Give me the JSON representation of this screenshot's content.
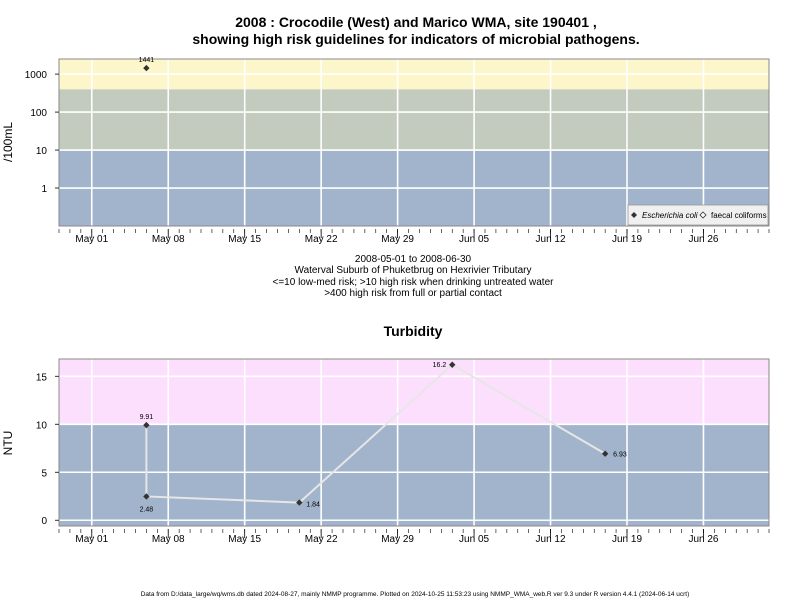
{
  "titles": {
    "main_line1": "2008 : Crocodile (West) and Marico WMA, site 190401 ,",
    "main_line2": "showing high risk guidelines for indicators of microbial pathogens.",
    "info_lines": [
      "2008-05-01 to 2008-06-30",
      "Waterval Suburb of Phuketbrug on Hexrivier Tributary",
      "<=10 low-med risk; >10 high risk when drinking untreated water",
      ">400 high risk from full or partial contact"
    ],
    "footer": "Data from D:/data_large/wq/wms.db dated 2024-08-27, mainly NMMP programme. Plotted on 2024-10-25 11:53:23 using NMMP_WMA_web.R ver 9.3 under R version 4.4.1 (2024-06-14 ucrt)"
  },
  "colors": {
    "blue_band": "#a2b4cc",
    "green_band": "#c2cbbe",
    "yellow_band": "#fdf6cb",
    "pink_band": "#fcdffc",
    "grid": "#ffffff",
    "line": "#e6e6e6",
    "point": "#333333"
  },
  "chart_data": [
    {
      "type": "scatter",
      "name": "microbial",
      "ylabel": "/100mL",
      "yscale": "log",
      "ytick_labels": [
        "1",
        "10",
        "100",
        "1000"
      ],
      "ylim": [
        0.1,
        2500
      ],
      "x_tick_labels": [
        "May 01",
        "May 08",
        "May 15",
        "May 22",
        "May 29",
        "Jun 05",
        "Jun 12",
        "Jun 19",
        "Jun 26"
      ],
      "xlim": [
        "2008-04-28",
        "2008-07-02"
      ],
      "bands": [
        {
          "from": 0.1,
          "to": 10,
          "color": "#a2b4cc"
        },
        {
          "from": 10,
          "to": 400,
          "color": "#c2cbbe"
        },
        {
          "from": 400,
          "to": 2500,
          "color": "#fdf6cb"
        }
      ],
      "series": [
        {
          "name": "Escherichia coli",
          "marker": "filled-diamond",
          "points": [
            {
              "x": "2008-05-06",
              "y": 1441,
              "label": "1441"
            }
          ]
        },
        {
          "name": "faecal coliforms",
          "marker": "open-diamond",
          "points": []
        }
      ],
      "legend_position": "bottom-right"
    },
    {
      "type": "line",
      "name": "turbidity",
      "title": "Turbidity",
      "ylabel": "NTU",
      "ytick_labels": [
        "0",
        "5",
        "10",
        "15"
      ],
      "ylim": [
        -0.6,
        16.8
      ],
      "x_tick_labels": [
        "May 01",
        "May 08",
        "May 15",
        "May 22",
        "May 29",
        "Jun 05",
        "Jun 12",
        "Jun 19",
        "Jun 26"
      ],
      "xlim": [
        "2008-04-28",
        "2008-07-02"
      ],
      "bands": [
        {
          "from": -0.6,
          "to": 10,
          "color": "#a2b4cc"
        },
        {
          "from": 10,
          "to": 16.8,
          "color": "#fcdffc"
        }
      ],
      "series": [
        {
          "points": [
            {
              "x": "2008-05-06",
              "y": 9.91,
              "label": "9.91"
            },
            {
              "x": "2008-05-06",
              "y": 2.48,
              "label": "2.48"
            },
            {
              "x": "2008-05-20",
              "y": 1.84,
              "label": "1.84"
            },
            {
              "x": "2008-06-03",
              "y": 16.2,
              "label": "16.2"
            },
            {
              "x": "2008-06-17",
              "y": 6.93,
              "label": "6.93"
            }
          ]
        }
      ]
    }
  ]
}
